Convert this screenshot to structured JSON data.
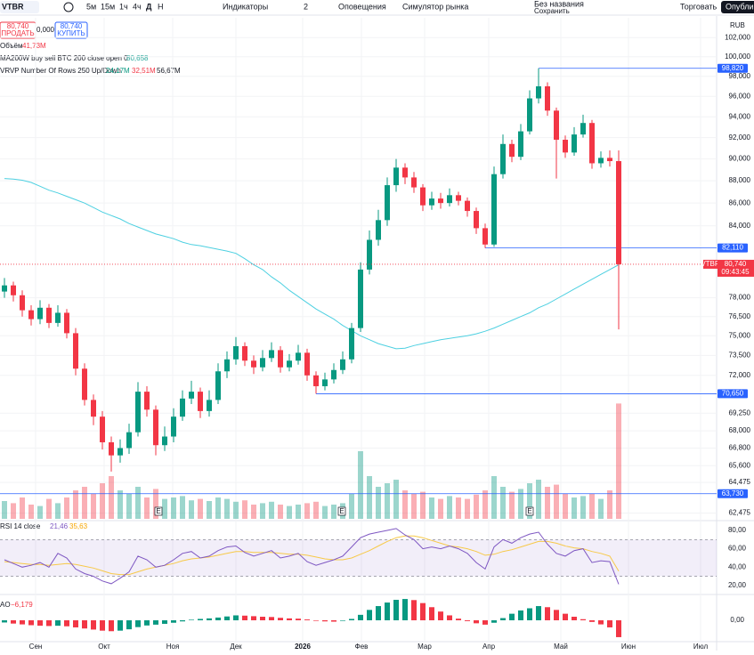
{
  "toolbar": {
    "symbol": "VTBR",
    "intervals": [
      "5м",
      "15м",
      "1ч",
      "4ч",
      "Д",
      "Н"
    ],
    "indicators": "Индикаторы",
    "layouts": "2",
    "alerts": "Оповещения",
    "replay": "Симулятор рынка",
    "layout_name": "Без названия",
    "save": "Сохранить",
    "trade": "Торговать",
    "publish": "Опублик"
  },
  "order_box": {
    "sell_price": "80,740",
    "sell": "ПРОДАТЬ",
    "spread": "0,000",
    "buy_price": "80,740",
    "buy": "КУПИТЬ"
  },
  "legends": {
    "volume": {
      "name": "Объём",
      "value": "41,73M"
    },
    "ma": {
      "name": "MA200W buy sell BTC 200 close open 0",
      "value": "80,658"
    },
    "vrvp": {
      "name": "VRVP Number Of Rows 250 Up/Down",
      "up": "24,17M",
      "down": "32,51M",
      "total": "56,67M"
    },
    "rsi": {
      "name": "RSI 14 close",
      "value": "21,46",
      "ma": "35,63"
    },
    "ao": {
      "name": "AO",
      "value": "−6,179"
    }
  },
  "chart_data": {
    "type": "candlestick",
    "currency": "RUB",
    "log": true,
    "ylim": [
      62100,
      104100
    ],
    "yticks": [
      {
        "value": 102000,
        "label": "102,000"
      },
      {
        "value": 100000,
        "label": "100,000"
      },
      {
        "value": 98000,
        "label": "98,000"
      },
      {
        "value": 96000,
        "label": "96,000"
      },
      {
        "value": 94000,
        "label": "94,000"
      },
      {
        "value": 92000,
        "label": "92,000"
      },
      {
        "value": 90000,
        "label": "90,000"
      },
      {
        "value": 88000,
        "label": "88,000"
      },
      {
        "value": 86000,
        "label": "86,000"
      },
      {
        "value": 84000,
        "label": "84,000"
      },
      {
        "value": 78000,
        "label": "78,000"
      },
      {
        "value": 76500,
        "label": "76,500"
      },
      {
        "value": 75000,
        "label": "75,000"
      },
      {
        "value": 73500,
        "label": "73,500"
      },
      {
        "value": 72000,
        "label": "72,000"
      },
      {
        "value": 69250,
        "label": "69,250"
      },
      {
        "value": 68000,
        "label": "68,000"
      },
      {
        "value": 66800,
        "label": "66,800"
      },
      {
        "value": 65600,
        "label": "65,600"
      },
      {
        "value": 64475,
        "label": "64,475"
      },
      {
        "value": 62475,
        "label": "62,475"
      }
    ],
    "xlim": [
      -0.5,
      80
    ],
    "xticks": [
      {
        "value": 3.5,
        "label": "Сен"
      },
      {
        "value": 11.2,
        "label": "Окт"
      },
      {
        "value": 18.9,
        "label": "Ноя"
      },
      {
        "value": 26,
        "label": "Дек"
      },
      {
        "value": 33.5,
        "label": "2026"
      },
      {
        "value": 40.1,
        "label": "Фев"
      },
      {
        "value": 47.2,
        "label": "Мар"
      },
      {
        "value": 54.4,
        "label": "Апр"
      },
      {
        "value": 62.5,
        "label": "Май"
      },
      {
        "value": 70.1,
        "label": "Июн"
      },
      {
        "value": 78.2,
        "label": "Июл"
      }
    ],
    "up_color": "#089981",
    "down_color": "#f23645",
    "open": [
      78500,
      79000,
      78200,
      77000,
      76300,
      77200,
      76000,
      76800,
      75200,
      72500,
      70200,
      69000,
      67200,
      66300,
      66800,
      67900,
      70800,
      69500,
      67000,
      67600,
      69000,
      70300,
      70800,
      69400,
      70200,
      72300,
      73200,
      74200,
      73100,
      72600,
      73300,
      73900,
      72600,
      73100,
      73700,
      72000,
      71200,
      71700,
      72400,
      73200,
      75600,
      80300,
      82800,
      84500,
      87600,
      89200,
      88300,
      87400,
      85800,
      86400,
      86000,
      86700,
      86200,
      85300,
      83800,
      82400,
      88600,
      91400,
      90200,
      92600,
      95800,
      97000,
      94600,
      91800,
      90600,
      92300,
      93400,
      89600,
      90100,
      89800
    ],
    "high": [
      79600,
      79300,
      78600,
      77400,
      77800,
      77500,
      77400,
      77100,
      75600,
      72900,
      70600,
      69400,
      67600,
      67400,
      68500,
      71500,
      71200,
      69800,
      68300,
      69600,
      70900,
      71600,
      71100,
      70900,
      72900,
      73800,
      74900,
      74500,
      73500,
      73900,
      74500,
      74200,
      73600,
      74300,
      74000,
      72300,
      72200,
      72900,
      73800,
      76000,
      80900,
      83600,
      85400,
      88300,
      90000,
      89600,
      88800,
      87700,
      87000,
      86900,
      87300,
      87000,
      86500,
      85600,
      84200,
      89300,
      92300,
      91800,
      93300,
      96600,
      98820,
      97400,
      94900,
      92200,
      93000,
      94200,
      93700,
      90700,
      90800,
      90800
    ],
    "low": [
      78000,
      77700,
      76500,
      75800,
      75900,
      75600,
      75700,
      74800,
      72000,
      69800,
      68400,
      66700,
      65200,
      65800,
      66400,
      67600,
      69000,
      66300,
      66600,
      67200,
      68700,
      69900,
      68900,
      69000,
      69900,
      71800,
      72800,
      72700,
      72100,
      72300,
      73000,
      72200,
      72300,
      72800,
      71600,
      70650,
      70900,
      71400,
      72100,
      72900,
      75300,
      79900,
      82300,
      84000,
      87000,
      87700,
      86900,
      85300,
      85400,
      85500,
      85700,
      85800,
      84800,
      83300,
      82110,
      82200,
      88200,
      89700,
      89900,
      92300,
      95300,
      94100,
      88200,
      90100,
      90300,
      92000,
      89100,
      89200,
      89300,
      75500
    ],
    "close": [
      79000,
      78200,
      77000,
      76300,
      77200,
      76000,
      76800,
      75200,
      72500,
      70200,
      69000,
      67200,
      66300,
      66800,
      67900,
      70800,
      69500,
      67000,
      67600,
      69000,
      70300,
      70800,
      69400,
      70200,
      72300,
      73200,
      74200,
      73100,
      72600,
      73300,
      73900,
      72600,
      73100,
      73700,
      72000,
      71200,
      71700,
      72400,
      73200,
      75600,
      80300,
      82800,
      84500,
      87600,
      89200,
      88300,
      87400,
      85800,
      86400,
      86000,
      86700,
      86200,
      85300,
      83800,
      82400,
      88600,
      91400,
      90200,
      92600,
      95800,
      97000,
      94600,
      91800,
      90600,
      92300,
      93400,
      89600,
      90100,
      89800,
      80740
    ],
    "ma": {
      "color": "#4dd0e1",
      "values": [
        88200,
        88150,
        88050,
        87850,
        87500,
        87150,
        86900,
        86600,
        86300,
        86000,
        85600,
        85200,
        84900,
        84600,
        84200,
        83900,
        83600,
        83300,
        83100,
        82900,
        82600,
        82400,
        82300,
        82150,
        82000,
        81850,
        81650,
        81200,
        80700,
        80300,
        79700,
        79200,
        78600,
        78100,
        77600,
        77100,
        76700,
        76300,
        75800,
        75400,
        75000,
        74700,
        74400,
        74200,
        74000,
        74050,
        74250,
        74400,
        74550,
        74700,
        74800,
        74900,
        75000,
        75150,
        75350,
        75600,
        75900,
        76200,
        76500,
        76800,
        77200,
        77500,
        77900,
        78300,
        78700,
        79100,
        79500,
        79900,
        80300,
        80700
      ]
    },
    "price_lines": [
      {
        "value": 98820,
        "label": "98,820",
        "color": "#2962ff"
      },
      {
        "value": 82110,
        "label": "82,110",
        "color": "#2962ff"
      },
      {
        "value": 70650,
        "label": "70,650",
        "color": "#2962ff"
      },
      {
        "value": 63730,
        "label": "63,730",
        "color": "#2962ff"
      }
    ],
    "last": {
      "symbol": "VTBR",
      "value": 80740,
      "label": "80,740",
      "time": "09:43:45",
      "color": "#f23645"
    },
    "events": [
      {
        "x": 17.3,
        "label": "E"
      },
      {
        "x": 37.9,
        "label": "E"
      },
      {
        "x": 59,
        "label": "E"
      }
    ],
    "volume": {
      "ylim": [
        0,
        200
      ],
      "values": [
        25,
        22,
        30,
        20,
        18,
        28,
        22,
        30,
        40,
        45,
        35,
        50,
        60,
        40,
        35,
        45,
        30,
        42,
        28,
        30,
        32,
        26,
        28,
        25,
        30,
        28,
        24,
        26,
        20,
        22,
        24,
        20,
        18,
        20,
        22,
        24,
        18,
        20,
        22,
        35,
        95,
        60,
        45,
        50,
        55,
        40,
        35,
        38,
        30,
        28,
        32,
        30,
        28,
        34,
        40,
        60,
        45,
        38,
        42,
        50,
        55,
        45,
        48,
        35,
        30,
        32,
        35,
        28,
        40,
        162
      ]
    },
    "rsi": {
      "ylim": [
        10.3,
        87.7
      ],
      "yticks": [
        {
          "value": 80,
          "label": "80,00"
        },
        {
          "value": 60,
          "label": "60,00"
        },
        {
          "value": 40,
          "label": "40,00"
        },
        {
          "value": 20,
          "label": "20,00"
        }
      ],
      "band": [
        30,
        70
      ],
      "color": "#7e57c2",
      "ma_color": "#f7c948",
      "values": [
        48,
        44,
        40,
        42,
        45,
        40,
        55,
        50,
        38,
        33,
        30,
        25,
        22,
        28,
        35,
        52,
        48,
        40,
        42,
        48,
        55,
        57,
        50,
        52,
        58,
        62,
        63,
        56,
        52,
        55,
        58,
        50,
        52,
        55,
        46,
        42,
        45,
        48,
        52,
        62,
        72,
        76,
        78,
        80,
        82,
        75,
        70,
        60,
        62,
        60,
        63,
        60,
        55,
        45,
        38,
        62,
        70,
        66,
        72,
        76,
        78,
        65,
        55,
        52,
        58,
        60,
        45,
        47,
        46,
        21.46
      ],
      "ma": [
        46,
        45,
        44,
        43,
        43,
        42,
        43,
        44,
        43,
        41,
        39,
        36,
        33,
        32,
        32,
        35,
        38,
        40,
        42,
        44,
        47,
        49,
        50,
        51,
        53,
        55,
        57,
        57,
        56,
        56,
        56,
        55,
        54,
        54,
        53,
        51,
        49,
        48,
        48,
        50,
        54,
        58,
        63,
        68,
        72,
        74,
        74,
        72,
        69,
        66,
        63,
        62,
        60,
        57,
        53,
        54,
        57,
        59,
        62,
        65,
        68,
        68,
        66,
        63,
        61,
        60,
        57,
        55,
        52,
        35.63
      ]
    },
    "ao": {
      "ylim": [
        -7500,
        8800
      ],
      "yticks": [
        {
          "value": 0,
          "label": "0,00"
        }
      ],
      "values": [
        -800,
        -1200,
        -1500,
        -1800,
        -2000,
        -2100,
        -2000,
        -2200,
        -2600,
        -3000,
        -3400,
        -3800,
        -4000,
        -3800,
        -3300,
        -2500,
        -1900,
        -1600,
        -1300,
        -900,
        -400,
        200,
        500,
        700,
        1000,
        1400,
        1800,
        1700,
        1500,
        1300,
        1200,
        900,
        700,
        600,
        300,
        -200,
        -400,
        -500,
        -200,
        500,
        2000,
        3800,
        5200,
        6500,
        7500,
        7800,
        7400,
        6300,
        4800,
        3200,
        1800,
        600,
        -300,
        -1100,
        -1600,
        -900,
        800,
        2400,
        3600,
        4400,
        5200,
        4800,
        3800,
        2400,
        1300,
        400,
        -600,
        -1500,
        -2600,
        -6179
      ]
    }
  }
}
